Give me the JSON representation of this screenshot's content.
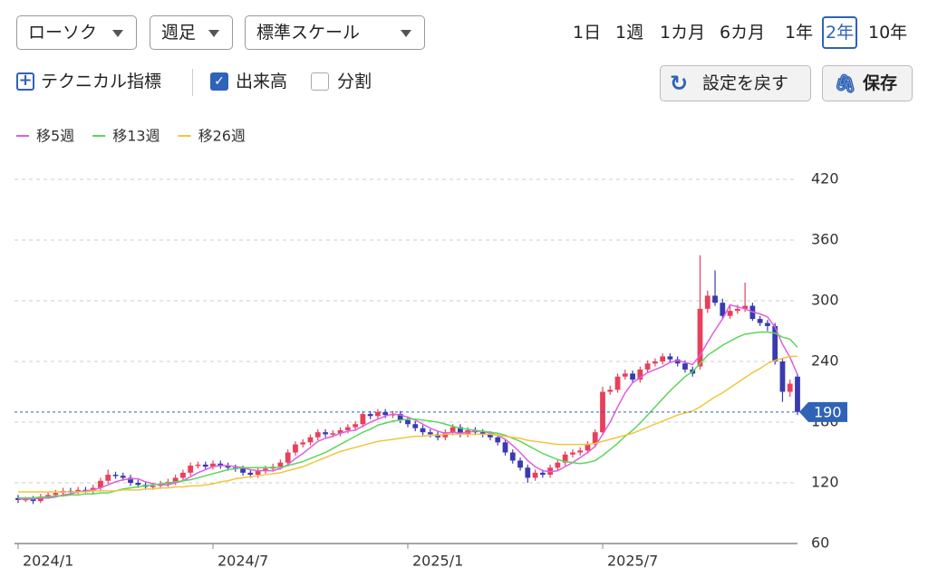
{
  "toolbar": {
    "dropdowns": [
      "ローソク",
      "週足",
      "標準スケール"
    ],
    "periods": [
      "1日",
      "1週",
      "1カ月",
      "6カ月",
      "1年",
      "2年",
      "10年"
    ],
    "technical": "テクニカル指標",
    "volume": "出来高",
    "split": "分割",
    "reset": "設定を戻す",
    "save": "保存"
  },
  "chart_data": {
    "type": "candlestick",
    "categories": [
      "2024/1",
      null,
      null,
      null,
      null,
      null,
      null,
      null,
      null,
      null,
      null,
      null,
      null,
      null,
      null,
      null,
      null,
      null,
      null,
      null,
      null,
      null,
      null,
      null,
      null,
      null,
      "2024/7",
      null,
      null,
      null,
      null,
      null,
      null,
      null,
      null,
      null,
      null,
      null,
      null,
      null,
      null,
      null,
      null,
      null,
      null,
      null,
      null,
      null,
      null,
      null,
      null,
      null,
      "2025/1",
      null,
      null,
      null,
      null,
      null,
      null,
      null,
      null,
      null,
      null,
      null,
      null,
      null,
      null,
      null,
      null,
      null,
      null,
      null,
      null,
      null,
      null,
      null,
      null,
      null,
      "2025/7",
      null,
      null,
      null,
      null,
      null,
      null,
      null,
      null,
      null,
      null,
      null,
      null,
      null,
      null,
      null,
      null,
      null,
      null,
      null,
      null,
      null,
      null,
      null,
      null,
      null,
      null
    ],
    "candles": {
      "up_color": "#e8405a",
      "down_color": "#3a3ab0",
      "open": [
        105,
        103,
        104,
        102,
        106,
        108,
        110,
        112,
        111,
        113,
        112,
        115,
        122,
        128,
        127,
        125,
        120,
        118,
        116,
        117,
        119,
        121,
        125,
        130,
        137,
        138,
        136,
        139,
        137,
        135,
        134,
        130,
        128,
        132,
        134,
        136,
        140,
        150,
        158,
        160,
        165,
        170,
        168,
        169,
        172,
        175,
        178,
        188,
        186,
        190,
        187,
        188,
        182,
        178,
        174,
        170,
        168,
        165,
        170,
        175,
        168,
        172,
        170,
        168,
        165,
        160,
        150,
        142,
        135,
        125,
        130,
        128,
        135,
        140,
        148,
        150,
        152,
        158,
        170,
        210,
        212,
        225,
        228,
        222,
        232,
        238,
        240,
        245,
        242,
        238,
        232,
        235,
        292,
        305,
        298,
        285,
        290,
        292,
        295,
        282,
        278,
        275,
        240,
        210,
        225
      ],
      "high": [
        108,
        106,
        107,
        109,
        111,
        113,
        115,
        115,
        116,
        116,
        118,
        125,
        133,
        131,
        130,
        128,
        123,
        121,
        120,
        122,
        124,
        128,
        133,
        140,
        141,
        141,
        142,
        142,
        140,
        138,
        137,
        133,
        135,
        137,
        139,
        143,
        153,
        161,
        163,
        168,
        173,
        173,
        172,
        175,
        178,
        181,
        191,
        191,
        193,
        193,
        191,
        191,
        185,
        181,
        177,
        173,
        171,
        173,
        178,
        178,
        175,
        175,
        173,
        171,
        168,
        163,
        153,
        145,
        138,
        133,
        133,
        138,
        143,
        151,
        153,
        155,
        161,
        173,
        215,
        216,
        228,
        232,
        231,
        235,
        241,
        243,
        248,
        248,
        245,
        241,
        235,
        345,
        310,
        330,
        302,
        295,
        296,
        318,
        298,
        285,
        281,
        278,
        243,
        222,
        228
      ],
      "low": [
        100,
        101,
        99,
        100,
        104,
        106,
        108,
        108,
        109,
        110,
        109,
        112,
        119,
        124,
        122,
        117,
        115,
        113,
        113,
        114,
        116,
        118,
        122,
        127,
        134,
        133,
        133,
        134,
        132,
        131,
        127,
        125,
        125,
        129,
        131,
        133,
        137,
        147,
        155,
        157,
        162,
        165,
        165,
        166,
        169,
        172,
        175,
        183,
        183,
        184,
        184,
        179,
        175,
        171,
        167,
        165,
        162,
        162,
        167,
        165,
        165,
        167,
        165,
        162,
        157,
        147,
        139,
        132,
        120,
        122,
        125,
        125,
        132,
        137,
        145,
        147,
        149,
        155,
        167,
        207,
        209,
        222,
        219,
        219,
        229,
        235,
        237,
        239,
        235,
        229,
        225,
        232,
        288,
        295,
        282,
        282,
        287,
        289,
        280,
        275,
        270,
        237,
        200,
        205,
        187
      ],
      "close": [
        103,
        104,
        102,
        106,
        108,
        110,
        112,
        111,
        113,
        112,
        115,
        122,
        128,
        127,
        125,
        120,
        118,
        116,
        117,
        119,
        121,
        125,
        130,
        137,
        138,
        136,
        139,
        137,
        135,
        134,
        130,
        128,
        132,
        134,
        136,
        140,
        150,
        158,
        160,
        165,
        170,
        168,
        169,
        172,
        175,
        178,
        188,
        186,
        190,
        187,
        188,
        182,
        178,
        174,
        170,
        168,
        165,
        170,
        175,
        168,
        172,
        170,
        168,
        165,
        160,
        150,
        142,
        135,
        125,
        130,
        128,
        135,
        140,
        148,
        150,
        152,
        158,
        170,
        210,
        212,
        225,
        228,
        222,
        232,
        238,
        240,
        245,
        242,
        238,
        232,
        228,
        292,
        305,
        298,
        285,
        290,
        292,
        295,
        282,
        278,
        275,
        240,
        210,
        218,
        190
      ]
    },
    "series": [
      {
        "name": "移5週",
        "color": "#dd5fe0",
        "values": [
          104,
          104,
          104,
          105,
          105,
          106,
          108,
          109,
          111,
          112,
          113,
          115,
          118,
          121,
          123,
          124,
          124,
          121,
          119,
          118,
          118,
          120,
          122,
          126,
          130,
          133,
          136,
          137,
          137,
          136,
          135,
          133,
          132,
          132,
          132,
          134,
          138,
          144,
          149,
          155,
          161,
          164,
          166,
          169,
          171,
          172,
          176,
          180,
          183,
          186,
          188,
          187,
          185,
          182,
          178,
          174,
          171,
          169,
          170,
          169,
          170,
          171,
          171,
          169,
          167,
          163,
          157,
          150,
          142,
          136,
          132,
          131,
          132,
          136,
          140,
          145,
          150,
          156,
          168,
          180,
          195,
          209,
          219,
          224,
          229,
          232,
          235,
          239,
          241,
          239,
          237,
          246,
          259,
          271,
          282,
          296,
          294,
          292,
          289,
          287,
          284,
          274,
          257,
          244,
          227
        ]
      },
      {
        "name": "移13週",
        "color": "#5cd65c",
        "values": [
          105,
          105,
          105,
          106,
          106,
          107,
          107,
          108,
          108,
          109,
          109,
          110,
          110,
          112,
          114,
          115,
          116,
          117,
          118,
          119,
          120,
          121,
          122,
          123,
          125,
          127,
          129,
          131,
          133,
          134,
          135,
          135,
          135,
          135,
          135,
          135,
          137,
          139,
          141,
          144,
          147,
          150,
          154,
          158,
          162,
          166,
          170,
          173,
          177,
          179,
          181,
          182,
          183,
          183,
          182,
          181,
          180,
          178,
          176,
          174,
          173,
          172,
          171,
          170,
          169,
          167,
          164,
          161,
          157,
          153,
          149,
          146,
          143,
          141,
          140,
          139,
          140,
          142,
          147,
          153,
          159,
          166,
          172,
          179,
          187,
          195,
          203,
          211,
          218,
          225,
          230,
          238,
          246,
          251,
          256,
          260,
          264,
          267,
          268,
          269,
          269,
          268,
          264,
          262,
          254
        ]
      },
      {
        "name": "移26週",
        "color": "#f2c53d",
        "values": [
          111,
          111,
          111,
          111,
          111,
          111,
          111,
          111,
          111,
          111,
          112,
          112,
          112,
          112,
          113,
          113,
          113,
          114,
          114,
          115,
          115,
          116,
          116,
          117,
          117,
          118,
          119,
          121,
          122,
          124,
          125,
          126,
          127,
          128,
          129,
          130,
          132,
          134,
          136,
          139,
          142,
          145,
          148,
          151,
          153,
          155,
          157,
          159,
          161,
          162,
          163,
          164,
          165,
          166,
          166,
          167,
          167,
          168,
          168,
          168,
          168,
          168,
          168,
          168,
          167,
          166,
          165,
          164,
          162,
          161,
          160,
          159,
          158,
          158,
          158,
          158,
          158,
          159,
          161,
          163,
          165,
          167,
          169,
          172,
          175,
          178,
          181,
          184,
          187,
          189,
          191,
          195,
          200,
          205,
          209,
          214,
          219,
          224,
          229,
          233,
          238,
          241,
          243,
          245,
          245
        ]
      }
    ],
    "ylim": [
      60,
      420
    ],
    "yticks": [
      60,
      120,
      180,
      240,
      300,
      360,
      420
    ],
    "grid": true,
    "last_price": 190,
    "last_price_color": "#2e63b8"
  }
}
